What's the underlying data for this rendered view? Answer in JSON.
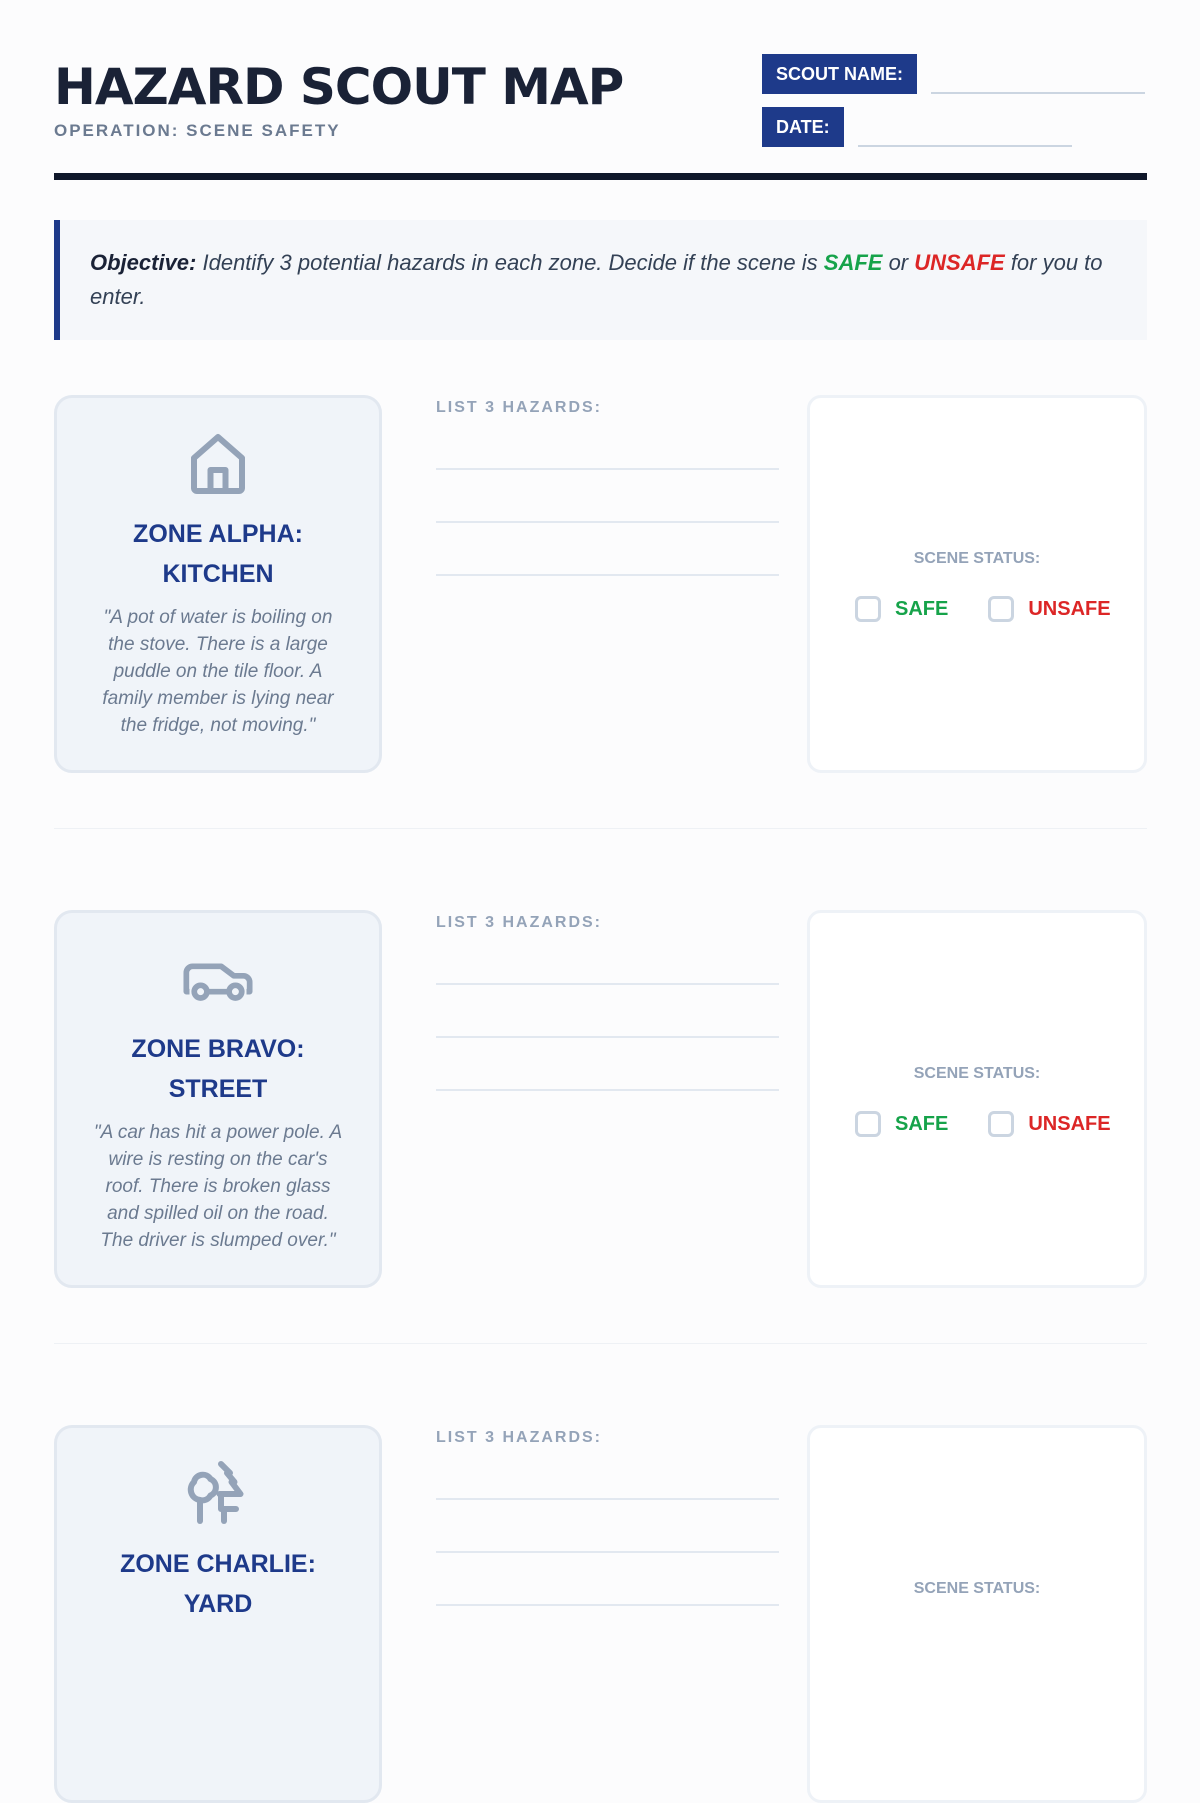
{
  "header": {
    "title": "HAZARD SCOUT MAP",
    "subtitle": "OPERATION: SCENE SAFETY",
    "scout_name_label": "SCOUT NAME:",
    "date_label": "DATE:"
  },
  "objective": {
    "lead": "Objective:",
    "text1": " Identify 3 potential hazards in each zone. Decide if the scene is ",
    "safe": "SAFE",
    "or": " or ",
    "unsafe": "UNSAFE",
    "text2": " for you to enter."
  },
  "colors": {
    "brand": "#1e3a8a",
    "safe": "#16a34a",
    "unsafe": "#dc2626"
  },
  "zones": [
    {
      "icon": "house-icon",
      "name": "ZONE ALPHA: KITCHEN",
      "desc": "\"A pot of water is boiling on the stove. There is a large puddle on the tile floor. A family member is lying near the fridge, not moving.\"",
      "hazards_label": "LIST 3 HAZARDS:",
      "status_label": "SCENE STATUS:",
      "safe": "SAFE",
      "unsafe": "UNSAFE"
    },
    {
      "icon": "car-icon",
      "name": "ZONE BRAVO: STREET",
      "desc": "\"A car has hit a power pole. A wire is resting on the car's roof. There is broken glass and spilled oil on the road. The driver is slumped over.\"",
      "hazards_label": "LIST 3 HAZARDS:",
      "status_label": "SCENE STATUS:",
      "safe": "SAFE",
      "unsafe": "UNSAFE"
    },
    {
      "icon": "trees-icon",
      "name": "ZONE CHARLIE: YARD",
      "hazards_label": "LIST 3 HAZARDS:",
      "status_label": "SCENE STATUS:"
    }
  ]
}
